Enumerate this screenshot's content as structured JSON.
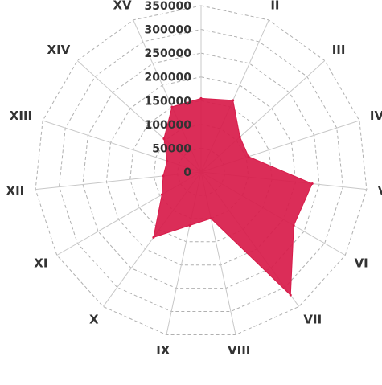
{
  "chart_data": {
    "type": "radar",
    "title": "",
    "categories": [
      "I",
      "II",
      "III",
      "IV",
      "V",
      "VI",
      "VII",
      "VIII",
      "IX",
      "X",
      "XI",
      "XII",
      "XIII",
      "XIV",
      "XV"
    ],
    "series": [
      {
        "values": [
          155000,
          165000,
          110000,
          105000,
          235000,
          225000,
          320000,
          100000,
          115000,
          170000,
          95000,
          80000,
          75000,
          105000,
          150000
        ],
        "color": "#d81b4a"
      }
    ],
    "rlim": [
      0,
      350000
    ],
    "r_ticks": [
      0,
      50000,
      100000,
      150000,
      200000,
      250000,
      300000,
      350000
    ],
    "r_tick_labels": [
      "0",
      "50000",
      "100000",
      "150000",
      "200000",
      "250000",
      "300000",
      "350000"
    ],
    "grid": true,
    "grid_shape": "polygon",
    "grid_color": "#b0b0b0",
    "spoke_color": "#c8c8c8"
  }
}
